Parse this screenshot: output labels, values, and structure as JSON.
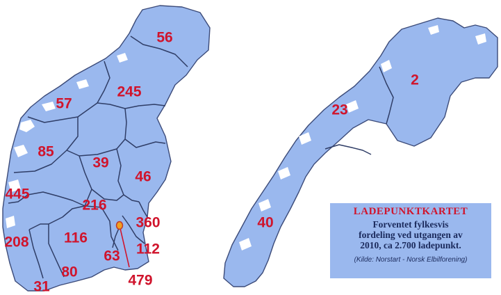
{
  "map": {
    "counties": [
      {
        "id": "nordland-sor",
        "value": "56"
      },
      {
        "id": "sor-trondelag",
        "value": "245"
      },
      {
        "id": "more-og-romsdal",
        "value": "57"
      },
      {
        "id": "sogn-og-fjordane",
        "value": "85"
      },
      {
        "id": "oppland",
        "value": "39"
      },
      {
        "id": "hedmark",
        "value": "46"
      },
      {
        "id": "hordaland",
        "value": "445"
      },
      {
        "id": "buskerud",
        "value": "216"
      },
      {
        "id": "akershus",
        "value": "360"
      },
      {
        "id": "rogaland",
        "value": "208"
      },
      {
        "id": "telemark",
        "value": "116"
      },
      {
        "id": "ostfold",
        "value": "112"
      },
      {
        "id": "vestfold",
        "value": "63"
      },
      {
        "id": "aust-agder",
        "value": "80"
      },
      {
        "id": "vest-agder",
        "value": "31"
      },
      {
        "id": "oslo",
        "value": "479"
      },
      {
        "id": "finnmark",
        "value": "2"
      },
      {
        "id": "troms",
        "value": "23"
      },
      {
        "id": "nordland",
        "value": "40"
      }
    ],
    "colors": {
      "land": "#9ab8ee",
      "border": "#2f3d66",
      "label": "#d0142c",
      "oslo_marker": "#f0a020"
    }
  },
  "info_box": {
    "title": "LADEPUNKTKARTET",
    "line1": "Forventet fylkesvis",
    "line2": "fordeling ved utgangen av",
    "line3": "2010, ca 2.700 ladepunkt.",
    "source": "(Kilde: Norstart - Norsk Elbilforening)"
  }
}
